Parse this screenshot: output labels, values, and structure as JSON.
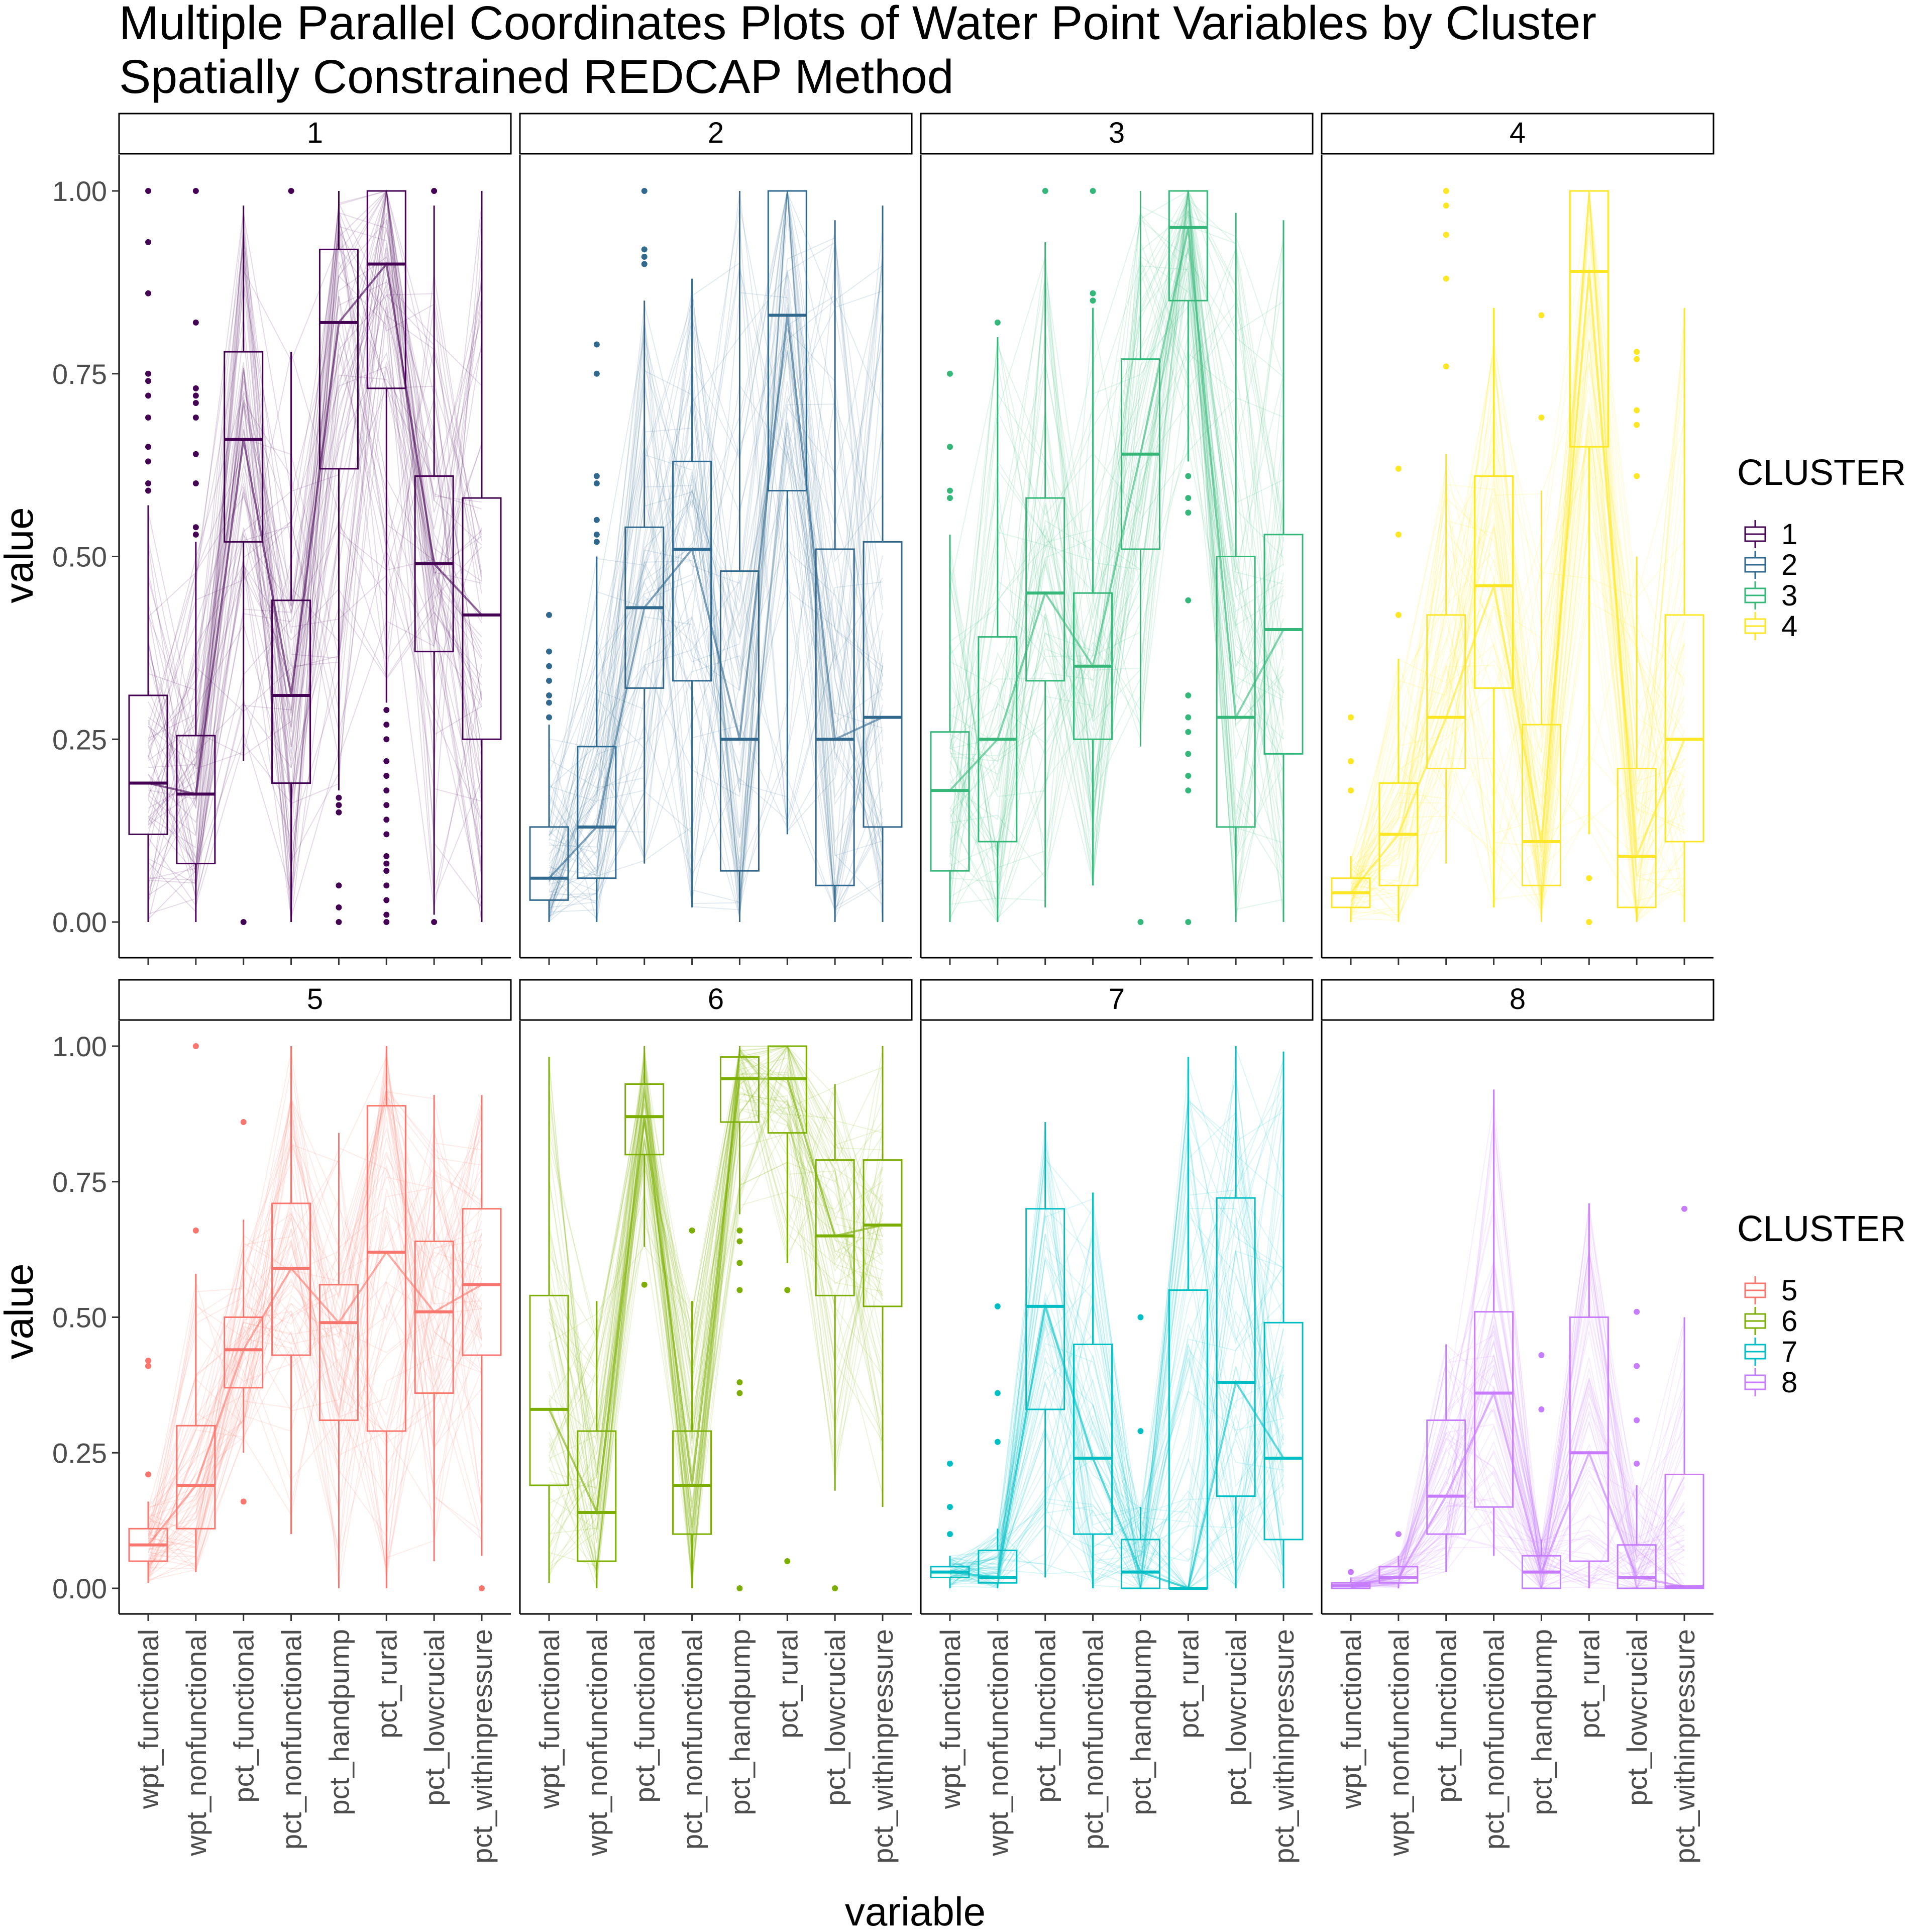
{
  "chart_data": {
    "type": "parallel-coordinates-boxplot",
    "title_lines": [
      "Multiple Parallel Coordinates Plots of Water Point Variables by Cluster",
      "Spatially Constrained REDCAP Method"
    ],
    "xlabel": "variable",
    "ylabel": "value",
    "ylim": [
      0,
      1
    ],
    "y_ticks": [
      "0.00",
      "0.25",
      "0.50",
      "0.75",
      "1.00"
    ],
    "y_tick_values": [
      0,
      0.25,
      0.5,
      0.75,
      1
    ],
    "variables": [
      "wpt_functional",
      "wpt_nonfunctional",
      "pct_functional",
      "pct_nonfunctional",
      "pct_handpump",
      "pct_rural",
      "pct_lowcrucial",
      "pct_withinpressure"
    ],
    "legends": [
      {
        "title": "CLUSTER",
        "entries": [
          "1",
          "2",
          "3",
          "4"
        ]
      },
      {
        "title": "CLUSTER",
        "entries": [
          "5",
          "6",
          "7",
          "8"
        ]
      }
    ],
    "panels": [
      {
        "cluster": "1",
        "color": "#440154",
        "boxes": [
          {
            "q1": 0.12,
            "med": 0.19,
            "q3": 0.31,
            "lo": 0,
            "hi": 0.57,
            "out": [
              0.59,
              0.6,
              0.63,
              0.65,
              0.69,
              0.72,
              0.74,
              0.75,
              0.86,
              0.93,
              1.0
            ]
          },
          {
            "q1": 0.08,
            "med": 0.175,
            "q3": 0.255,
            "lo": 0,
            "hi": 0.52,
            "out": [
              0.53,
              0.54,
              0.6,
              0.64,
              0.69,
              0.71,
              0.72,
              0.73,
              0.82,
              1.0
            ]
          },
          {
            "q1": 0.52,
            "med": 0.66,
            "q3": 0.78,
            "lo": 0.22,
            "hi": 0.98,
            "out": [
              0
            ]
          },
          {
            "q1": 0.19,
            "med": 0.31,
            "q3": 0.44,
            "lo": 0,
            "hi": 0.78,
            "out": [
              1.0
            ]
          },
          {
            "q1": 0.62,
            "med": 0.82,
            "q3": 0.92,
            "lo": 0.18,
            "hi": 1.0,
            "out": [
              0,
              0.02,
              0.05,
              0.15,
              0.16,
              0.17
            ]
          },
          {
            "q1": 0.73,
            "med": 0.9,
            "q3": 1.0,
            "lo": 0.3,
            "hi": 1.0,
            "out": [
              0,
              0.01,
              0.03,
              0.05,
              0.07,
              0.08,
              0.09,
              0.12,
              0.14,
              0.16,
              0.18,
              0.2,
              0.22,
              0.25,
              0.27,
              0.29
            ]
          },
          {
            "q1": 0.37,
            "med": 0.49,
            "q3": 0.61,
            "lo": 0.01,
            "hi": 0.98,
            "out": [
              0,
              1.0
            ]
          },
          {
            "q1": 0.25,
            "med": 0.42,
            "q3": 0.58,
            "lo": 0,
            "hi": 1.0,
            "out": []
          }
        ]
      },
      {
        "cluster": "2",
        "color": "#31688E",
        "boxes": [
          {
            "q1": 0.03,
            "med": 0.06,
            "q3": 0.13,
            "lo": 0,
            "hi": 0.27,
            "out": [
              0.28,
              0.3,
              0.31,
              0.33,
              0.35,
              0.37,
              0.42
            ]
          },
          {
            "q1": 0.06,
            "med": 0.13,
            "q3": 0.24,
            "lo": 0,
            "hi": 0.5,
            "out": [
              0.52,
              0.53,
              0.55,
              0.6,
              0.61,
              0.75,
              0.79
            ]
          },
          {
            "q1": 0.32,
            "med": 0.43,
            "q3": 0.54,
            "lo": 0.08,
            "hi": 0.85,
            "out": [
              0.9,
              0.91,
              0.92,
              1.0
            ]
          },
          {
            "q1": 0.33,
            "med": 0.51,
            "q3": 0.63,
            "lo": 0.02,
            "hi": 0.88,
            "out": []
          },
          {
            "q1": 0.07,
            "med": 0.25,
            "q3": 0.48,
            "lo": 0,
            "hi": 1.0,
            "out": []
          },
          {
            "q1": 0.59,
            "med": 0.83,
            "q3": 1.0,
            "lo": 0.12,
            "hi": 1.0,
            "out": []
          },
          {
            "q1": 0.05,
            "med": 0.25,
            "q3": 0.51,
            "lo": 0,
            "hi": 0.96,
            "out": []
          },
          {
            "q1": 0.13,
            "med": 0.28,
            "q3": 0.52,
            "lo": 0,
            "hi": 0.98,
            "out": []
          }
        ]
      },
      {
        "cluster": "3",
        "color": "#35B779",
        "boxes": [
          {
            "q1": 0.07,
            "med": 0.18,
            "q3": 0.26,
            "lo": 0,
            "hi": 0.53,
            "out": [
              0.58,
              0.59,
              0.65,
              0.75
            ]
          },
          {
            "q1": 0.11,
            "med": 0.25,
            "q3": 0.39,
            "lo": 0,
            "hi": 0.8,
            "out": [
              0.82
            ]
          },
          {
            "q1": 0.33,
            "med": 0.45,
            "q3": 0.58,
            "lo": 0.02,
            "hi": 0.93,
            "out": [
              1.0
            ]
          },
          {
            "q1": 0.25,
            "med": 0.35,
            "q3": 0.45,
            "lo": 0.05,
            "hi": 0.84,
            "out": [
              0.85,
              0.86,
              1.0
            ]
          },
          {
            "q1": 0.51,
            "med": 0.64,
            "q3": 0.77,
            "lo": 0.24,
            "hi": 1.0,
            "out": [
              0
            ]
          },
          {
            "q1": 0.85,
            "med": 0.95,
            "q3": 1.0,
            "lo": 0.63,
            "hi": 1.0,
            "out": [
              0,
              0.18,
              0.2,
              0.23,
              0.26,
              0.28,
              0.31,
              0.44,
              0.56,
              0.58,
              0.61
            ]
          },
          {
            "q1": 0.13,
            "med": 0.28,
            "q3": 0.5,
            "lo": 0,
            "hi": 0.97,
            "out": []
          },
          {
            "q1": 0.23,
            "med": 0.4,
            "q3": 0.53,
            "lo": 0,
            "hi": 0.96,
            "out": []
          }
        ]
      },
      {
        "cluster": "4",
        "color": "#FDE725",
        "boxes": [
          {
            "q1": 0.02,
            "med": 0.04,
            "q3": 0.06,
            "lo": 0,
            "hi": 0.09,
            "out": [
              0.18,
              0.22,
              0.28
            ]
          },
          {
            "q1": 0.05,
            "med": 0.12,
            "q3": 0.19,
            "lo": 0,
            "hi": 0.36,
            "out": [
              0.42,
              0.53,
              0.62
            ]
          },
          {
            "q1": 0.21,
            "med": 0.28,
            "q3": 0.42,
            "lo": 0.08,
            "hi": 0.64,
            "out": [
              0.76,
              0.88,
              0.94,
              0.98,
              1.0
            ]
          },
          {
            "q1": 0.32,
            "med": 0.46,
            "q3": 0.61,
            "lo": 0.02,
            "hi": 0.84,
            "out": []
          },
          {
            "q1": 0.05,
            "med": 0.11,
            "q3": 0.27,
            "lo": 0,
            "hi": 0.59,
            "out": [
              0.69,
              0.83
            ]
          },
          {
            "q1": 0.65,
            "med": 0.89,
            "q3": 1.0,
            "lo": 0.12,
            "hi": 1.0,
            "out": [
              0,
              0.06
            ]
          },
          {
            "q1": 0.02,
            "med": 0.09,
            "q3": 0.21,
            "lo": 0,
            "hi": 0.5,
            "out": [
              0.61,
              0.68,
              0.7,
              0.77,
              0.78
            ]
          },
          {
            "q1": 0.11,
            "med": 0.25,
            "q3": 0.42,
            "lo": 0,
            "hi": 0.84,
            "out": []
          }
        ]
      },
      {
        "cluster": "5",
        "color": "#F8766D",
        "boxes": [
          {
            "q1": 0.05,
            "med": 0.08,
            "q3": 0.11,
            "lo": 0.01,
            "hi": 0.16,
            "out": [
              0.21,
              0.41,
              0.42
            ]
          },
          {
            "q1": 0.11,
            "med": 0.19,
            "q3": 0.3,
            "lo": 0.03,
            "hi": 0.58,
            "out": [
              0.66,
              1.0
            ]
          },
          {
            "q1": 0.37,
            "med": 0.44,
            "q3": 0.5,
            "lo": 0.25,
            "hi": 0.68,
            "out": [
              0.16,
              0.86
            ]
          },
          {
            "q1": 0.43,
            "med": 0.59,
            "q3": 0.71,
            "lo": 0.1,
            "hi": 1.0,
            "out": []
          },
          {
            "q1": 0.31,
            "med": 0.49,
            "q3": 0.56,
            "lo": 0,
            "hi": 0.84,
            "out": []
          },
          {
            "q1": 0.29,
            "med": 0.62,
            "q3": 0.89,
            "lo": 0,
            "hi": 1.0,
            "out": []
          },
          {
            "q1": 0.36,
            "med": 0.51,
            "q3": 0.64,
            "lo": 0.05,
            "hi": 0.91,
            "out": []
          },
          {
            "q1": 0.43,
            "med": 0.56,
            "q3": 0.7,
            "lo": 0.06,
            "hi": 0.91,
            "out": [
              0
            ]
          }
        ]
      },
      {
        "cluster": "6",
        "color": "#7CAE00",
        "boxes": [
          {
            "q1": 0.19,
            "med": 0.33,
            "q3": 0.54,
            "lo": 0.01,
            "hi": 0.98,
            "out": []
          },
          {
            "q1": 0.05,
            "med": 0.14,
            "q3": 0.29,
            "lo": 0,
            "hi": 0.53,
            "out": []
          },
          {
            "q1": 0.8,
            "med": 0.87,
            "q3": 0.93,
            "lo": 0.63,
            "hi": 1.0,
            "out": [
              0.56
            ]
          },
          {
            "q1": 0.1,
            "med": 0.19,
            "q3": 0.29,
            "lo": 0,
            "hi": 0.53,
            "out": [
              0.66
            ]
          },
          {
            "q1": 0.86,
            "med": 0.94,
            "q3": 0.98,
            "lo": 0.69,
            "hi": 1.0,
            "out": [
              0,
              0.36,
              0.38,
              0.55,
              0.6,
              0.64,
              0.66
            ]
          },
          {
            "q1": 0.84,
            "med": 0.94,
            "q3": 1.0,
            "lo": 0.6,
            "hi": 1.0,
            "out": [
              0.05,
              0.55
            ]
          },
          {
            "q1": 0.54,
            "med": 0.65,
            "q3": 0.79,
            "lo": 0.18,
            "hi": 0.93,
            "out": [
              0
            ]
          },
          {
            "q1": 0.52,
            "med": 0.67,
            "q3": 0.79,
            "lo": 0.15,
            "hi": 1.0,
            "out": []
          }
        ]
      },
      {
        "cluster": "7",
        "color": "#00BFC4",
        "boxes": [
          {
            "q1": 0.02,
            "med": 0.03,
            "q3": 0.04,
            "lo": 0,
            "hi": 0.06,
            "out": [
              0.1,
              0.15,
              0.23
            ]
          },
          {
            "q1": 0.01,
            "med": 0.02,
            "q3": 0.07,
            "lo": 0,
            "hi": 0.11,
            "out": [
              0.27,
              0.36,
              0.52
            ]
          },
          {
            "q1": 0.33,
            "med": 0.52,
            "q3": 0.7,
            "lo": 0.02,
            "hi": 0.86,
            "out": []
          },
          {
            "q1": 0.1,
            "med": 0.24,
            "q3": 0.45,
            "lo": 0,
            "hi": 0.73,
            "out": []
          },
          {
            "q1": 0.0,
            "med": 0.03,
            "q3": 0.09,
            "lo": 0,
            "hi": 0.15,
            "out": [
              0.29,
              0.5
            ]
          },
          {
            "q1": 0.0,
            "med": 0.0,
            "q3": 0.55,
            "lo": 0,
            "hi": 0.98,
            "out": []
          },
          {
            "q1": 0.17,
            "med": 0.38,
            "q3": 0.72,
            "lo": 0,
            "hi": 1.0,
            "out": []
          },
          {
            "q1": 0.09,
            "med": 0.24,
            "q3": 0.49,
            "lo": 0,
            "hi": 0.99,
            "out": []
          }
        ]
      },
      {
        "cluster": "8",
        "color": "#C77CFF",
        "boxes": [
          {
            "q1": 0.0,
            "med": 0.005,
            "q3": 0.01,
            "lo": 0,
            "hi": 0.02,
            "out": [
              0.03
            ]
          },
          {
            "q1": 0.01,
            "med": 0.02,
            "q3": 0.04,
            "lo": 0,
            "hi": 0.06,
            "out": [
              0.1
            ]
          },
          {
            "q1": 0.1,
            "med": 0.17,
            "q3": 0.31,
            "lo": 0.03,
            "hi": 0.45,
            "out": []
          },
          {
            "q1": 0.15,
            "med": 0.36,
            "q3": 0.51,
            "lo": 0.06,
            "hi": 0.92,
            "out": []
          },
          {
            "q1": 0.0,
            "med": 0.03,
            "q3": 0.06,
            "lo": 0,
            "hi": 0.09,
            "out": [
              0.33,
              0.43
            ]
          },
          {
            "q1": 0.05,
            "med": 0.25,
            "q3": 0.5,
            "lo": 0,
            "hi": 0.71,
            "out": []
          },
          {
            "q1": 0.0,
            "med": 0.02,
            "q3": 0.08,
            "lo": 0,
            "hi": 0.19,
            "out": [
              0.23,
              0.31,
              0.41,
              0.51
            ]
          },
          {
            "q1": 0.0,
            "med": 0.003,
            "q3": 0.21,
            "lo": 0,
            "hi": 0.5,
            "out": [
              0.7
            ]
          }
        ]
      }
    ]
  }
}
